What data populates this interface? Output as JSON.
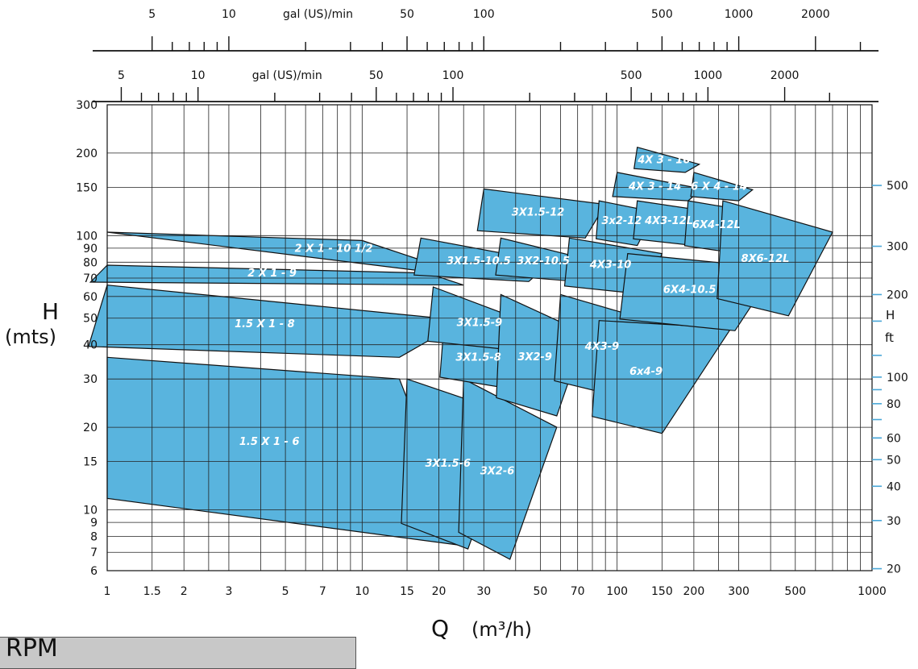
{
  "chart_data": {
    "type": "area",
    "title": "",
    "xlabel": "Q",
    "xlabel_unit": "(m³/h)",
    "ylabel_left": "H",
    "ylabel_left_unit": "(mts)",
    "ylabel_right": "H",
    "ylabel_right_unit": "ft",
    "x_scale": "log",
    "y_scale": "log",
    "xlim": [
      1,
      1000
    ],
    "ylim": [
      6,
      300
    ],
    "x_ticks": [
      "1",
      "1.5",
      "2",
      "3",
      "5",
      "7",
      "10",
      "15",
      "20",
      "30",
      "50",
      "70",
      "100",
      "150",
      "200",
      "300",
      "500",
      "1000"
    ],
    "x_tick_values": [
      1,
      1.5,
      2,
      3,
      5,
      7,
      10,
      15,
      20,
      30,
      50,
      70,
      100,
      150,
      200,
      300,
      500,
      1000
    ],
    "y_ticks_left": [
      "300",
      "200",
      "150",
      "100",
      "90",
      "80",
      "70",
      "60",
      "50",
      "40",
      "30",
      "20",
      "15",
      "10",
      "9",
      "8",
      "7",
      "6"
    ],
    "y_tick_values_left": [
      300,
      200,
      150,
      100,
      90,
      80,
      70,
      60,
      50,
      40,
      30,
      20,
      15,
      10,
      9,
      8,
      7,
      6
    ],
    "y_ticks_right": [
      "500",
      "300",
      "200",
      "100",
      "80",
      "60",
      "50",
      "40",
      "30",
      "20"
    ],
    "y_tick_values_right_m": [
      152.4,
      91.44,
      60.96,
      30.48,
      24.38,
      18.29,
      15.24,
      12.19,
      9.14,
      6.1
    ],
    "gpm_axis_top": {
      "label": "gal (US)/min",
      "ticks": [
        "5",
        "10",
        "50",
        "100",
        "500",
        "1000",
        "2000"
      ]
    },
    "gpm_axis_second": {
      "label": "gal (US)/min",
      "ticks": [
        "5",
        "10",
        "50",
        "100",
        "500",
        "1000",
        "2000"
      ]
    },
    "zones": [
      {
        "name": "1.5 X 1 - 6",
        "q": [
          1,
          14,
          25,
          1
        ],
        "h": [
          36,
          30,
          7.4,
          11
        ]
      },
      {
        "name": "1.5 X 1 - 8",
        "q": [
          1,
          25,
          14
        ],
        "h": [
          66,
          49,
          36
        ]
      },
      {
        "name": "2 X 1 - 9",
        "q": [
          1,
          18,
          25
        ],
        "h": [
          78,
          73,
          66
        ]
      },
      {
        "name": "2 X 1 - 10 1/2",
        "q": [
          1,
          10,
          18,
          20
        ],
        "h": [
          103,
          96,
          80,
          73
        ]
      },
      {
        "name": "3X1.5-6",
        "q": [
          15,
          40,
          26
        ],
        "h": [
          30,
          22,
          7.2
        ]
      },
      {
        "name": "3X2-6",
        "q": [
          25,
          58,
          38
        ],
        "h": [
          30,
          20,
          6.6
        ]
      },
      {
        "name": "3X1.5-8",
        "q": [
          21,
          45,
          35
        ],
        "h": [
          49,
          36,
          28
        ]
      },
      {
        "name": "3X1.5-9",
        "q": [
          19,
          48,
          42
        ],
        "h": [
          65,
          47,
          38
        ]
      },
      {
        "name": "3X2-9",
        "q": [
          35,
          75,
          58
        ],
        "h": [
          61,
          44,
          22
        ]
      },
      {
        "name": "4X3-9",
        "q": [
          60,
          170,
          100
        ],
        "h": [
          61,
          46,
          26
        ]
      },
      {
        "name": "6x4-9",
        "q": [
          85,
          280,
          150
        ],
        "h": [
          49,
          46,
          19
        ]
      },
      {
        "name": "3X1.5-10.5",
        "q": [
          17,
          55,
          45
        ],
        "h": [
          98,
          80,
          68
        ]
      },
      {
        "name": "3X2-10.5",
        "q": [
          35,
          85,
          70
        ],
        "h": [
          98,
          80,
          68
        ]
      },
      {
        "name": "4X3-10",
        "q": [
          65,
          150,
          130
        ],
        "h": [
          98,
          86,
          61
        ]
      },
      {
        "name": "6X4-10.5",
        "q": [
          110,
          420,
          290
        ],
        "h": [
          86,
          76,
          45
        ]
      },
      {
        "name": "3X1.5-12",
        "q": [
          30,
          90,
          75
        ],
        "h": [
          148,
          130,
          98
        ]
      },
      {
        "name": "3x2-12",
        "q": [
          85,
          140,
          120
        ],
        "h": [
          134,
          122,
          92
        ]
      },
      {
        "name": "4X3-12L",
        "q": [
          120,
          235,
          200
        ],
        "h": [
          134,
          122,
          92
        ]
      },
      {
        "name": "6X4-12L",
        "q": [
          190,
          345,
          300
        ],
        "h": [
          134,
          122,
          86
        ]
      },
      {
        "name": "8X6-12L",
        "q": [
          260,
          700,
          470
        ],
        "h": [
          134,
          103,
          51
        ]
      },
      {
        "name": "4X 3 - 14",
        "q": [
          100,
          215,
          190
        ],
        "h": [
          170,
          148,
          134
        ]
      },
      {
        "name": "6 X 4 - 14",
        "q": [
          200,
          340,
          300
        ],
        "h": [
          170,
          147,
          134
        ]
      },
      {
        "name": "4X 3 - 16",
        "q": [
          120,
          210,
          185
        ],
        "h": [
          210,
          182,
          170
        ]
      }
    ]
  },
  "footer": {
    "rpm_label": "RPM"
  }
}
